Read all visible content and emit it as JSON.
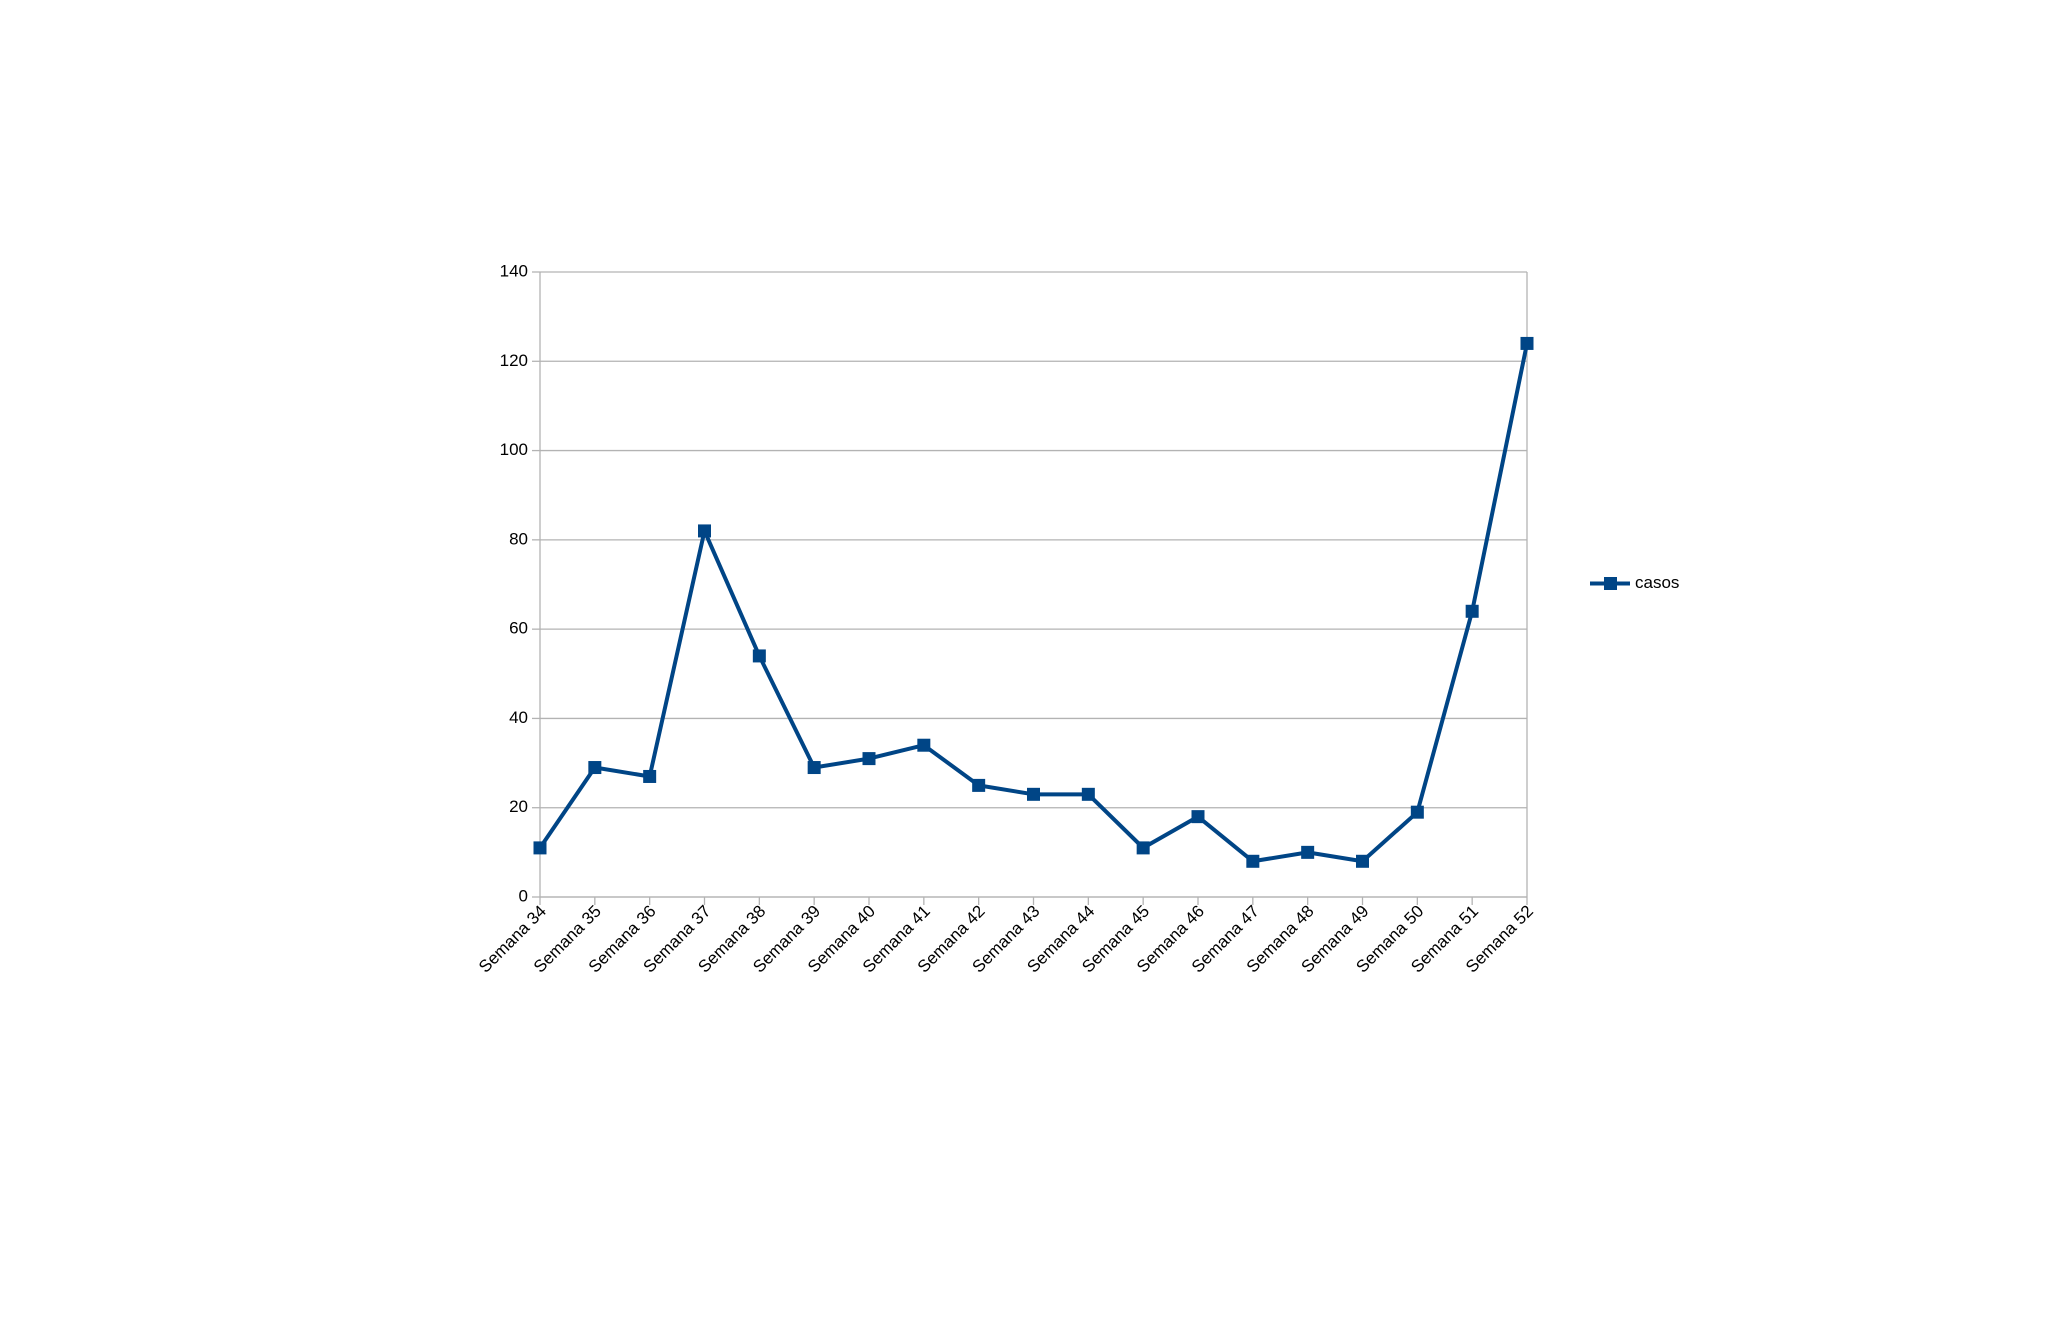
{
  "chart_data": {
    "type": "line",
    "categories": [
      "Semana 34",
      "Semana 35",
      "Semana 36",
      "Semana 37",
      "Semana 38",
      "Semana 39",
      "Semana 40",
      "Semana 41",
      "Semana 42",
      "Semana 43",
      "Semana 44",
      "Semana 45",
      "Semana 46",
      "Semana 47",
      "Semana 48",
      "Semana 49",
      "Semana 50",
      "Semana 51",
      "Semana 52"
    ],
    "series": [
      {
        "name": "casos",
        "color": "#004586",
        "values": [
          11,
          29,
          27,
          82,
          54,
          29,
          31,
          34,
          25,
          23,
          23,
          11,
          18,
          8,
          10,
          8,
          19,
          64,
          124
        ]
      }
    ],
    "ylim": [
      0,
      140
    ],
    "yticks": [
      0,
      20,
      40,
      60,
      80,
      100,
      120,
      140
    ],
    "grid": true,
    "legend": "right"
  }
}
